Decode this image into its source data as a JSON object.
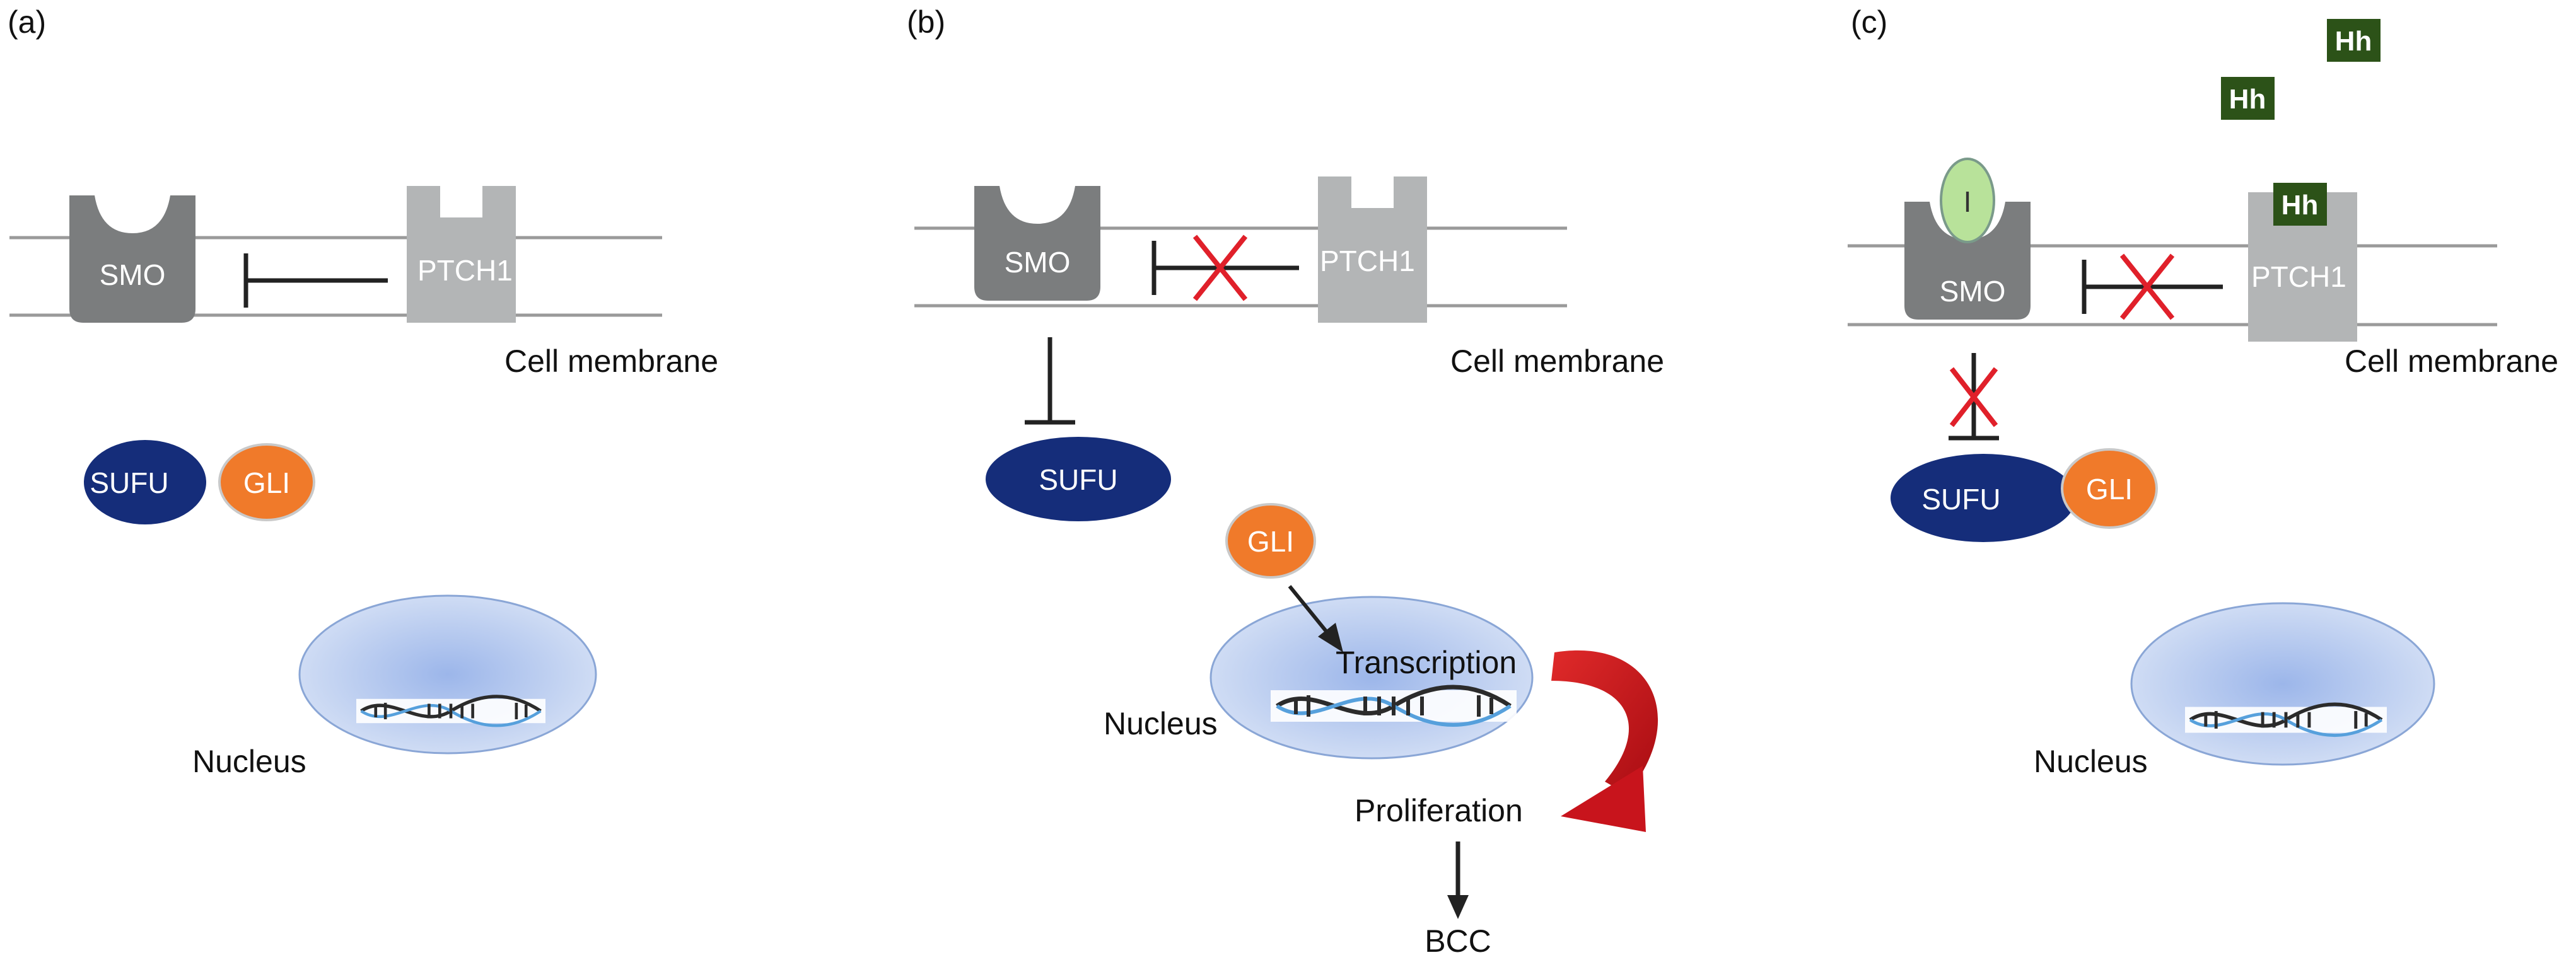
{
  "panels": [
    {
      "id": "a",
      "label": "(a)"
    },
    {
      "id": "b",
      "label": "(b)"
    },
    {
      "id": "c",
      "label": "(c)"
    }
  ],
  "labels": {
    "smo": "SMO",
    "ptch1": "PTCH1",
    "sufu": "SUFU",
    "gli": "GLI",
    "cell_membrane": "Cell membrane",
    "nucleus": "Nucleus",
    "transcription": "Transcription",
    "proliferation": "Proliferation",
    "bcc": "BCC",
    "hh": "Hh",
    "inhibitor": "I"
  },
  "colors": {
    "smo": "#7b7d7e",
    "ptch1": "#b3b5b6",
    "sufu": "#152d7a",
    "gli": "#f07a2a",
    "nucleus": "#bed0ee",
    "hh": "#2c5218",
    "inhibitor": "#b8e29a",
    "block_x": "#e0202a",
    "arrow_red": "#c8141c"
  }
}
